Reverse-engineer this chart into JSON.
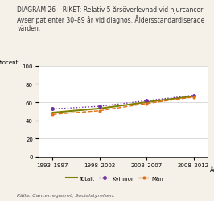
{
  "title": "DIAGRAM 26 – RIKET: Relativ 5-årsöverlevnad vid njurcancer,\nAvser patienter 30–89 år vid diagnos. Åldersstandardiserade\nvärden.",
  "ylabel": "Procent",
  "xlabel": "År",
  "source": "Källa: Cancerregistret, Socialstyrelsen.",
  "x_labels": [
    "1993–1997",
    "1998–2002",
    "2003–2007",
    "2008–2012"
  ],
  "x_positions": [
    0,
    1,
    2,
    3
  ],
  "totalt_values": [
    48.5,
    53.0,
    60.0,
    66.5
  ],
  "kvinnor_values": [
    52.5,
    55.5,
    61.5,
    67.5
  ],
  "man_values": [
    46.5,
    50.5,
    58.5,
    65.5
  ],
  "ylim": [
    0,
    100
  ],
  "yticks": [
    0,
    20,
    40,
    60,
    80,
    100
  ],
  "totalt_color": "#808000",
  "kvinnor_color": "#7030a0",
  "man_color": "#e07010",
  "background_color": "#f5f0e8",
  "plot_bg": "#ffffff",
  "title_fontsize": 5.5,
  "label_fontsize": 5.0,
  "tick_fontsize": 5.0,
  "legend_fontsize": 5.0,
  "source_fontsize": 4.5
}
